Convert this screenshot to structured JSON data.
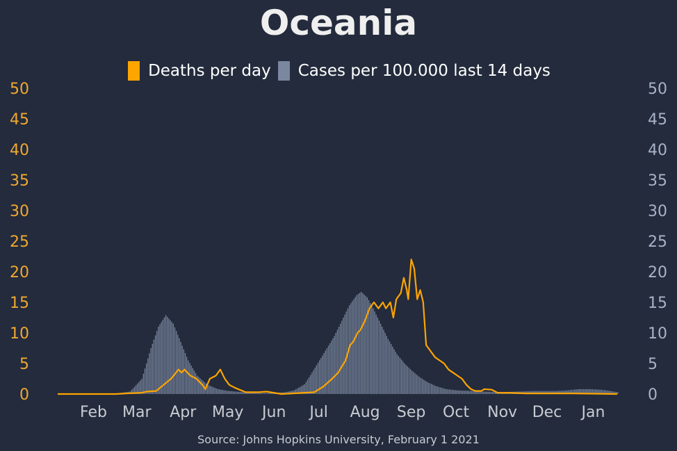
{
  "chart_data": {
    "type": "bar+line",
    "title": "Oceania",
    "source": "Source: Johns Hopkins University, February 1 2021",
    "colors": {
      "deaths": "#ffa500",
      "cases": "#7a879f",
      "left_axis": "#f0a830",
      "right_axis": "#a9b3c8",
      "month_labels": "#c9ccd2",
      "background": "#232b3c"
    },
    "legend": [
      {
        "key": "deaths",
        "label": "Deaths per day"
      },
      {
        "key": "cases",
        "label": "Cases per 100.000 last 14 days"
      }
    ],
    "y_left": {
      "ylim": [
        0,
        50
      ],
      "ticks": [
        "0",
        "5",
        "10",
        "15",
        "20",
        "25",
        "30",
        "35",
        "40",
        "45",
        "50"
      ]
    },
    "y_right": {
      "ylim": [
        0,
        50
      ],
      "ticks": [
        "0",
        "5",
        "10",
        "15",
        "20",
        "25",
        "30",
        "35",
        "40",
        "45",
        "50"
      ]
    },
    "months": [
      "Feb",
      "Mar",
      "Apr",
      "May",
      "Jun",
      "Jul",
      "Aug",
      "Sep",
      "Oct",
      "Nov",
      "Dec",
      "Jan"
    ],
    "x_start": "2020-01-22",
    "cases_points": [
      [
        "2020-01-22",
        0
      ],
      [
        "2020-03-01",
        0.1
      ],
      [
        "2020-03-10",
        0.4
      ],
      [
        "2020-03-18",
        2.5
      ],
      [
        "2020-03-24",
        7.5
      ],
      [
        "2020-03-29",
        11
      ],
      [
        "2020-04-03",
        12.9
      ],
      [
        "2020-04-08",
        11.5
      ],
      [
        "2020-04-13",
        8.5
      ],
      [
        "2020-04-18",
        5.5
      ],
      [
        "2020-04-24",
        3
      ],
      [
        "2020-05-01",
        1.5
      ],
      [
        "2020-05-08",
        0.8
      ],
      [
        "2020-05-15",
        0.5
      ],
      [
        "2020-05-25",
        0.3
      ],
      [
        "2020-06-05",
        0.15
      ],
      [
        "2020-06-15",
        0.2
      ],
      [
        "2020-06-22",
        0.3
      ],
      [
        "2020-06-28",
        0.6
      ],
      [
        "2020-07-05",
        1.6
      ],
      [
        "2020-07-10",
        3.5
      ],
      [
        "2020-07-15",
        5.5
      ],
      [
        "2020-07-20",
        7.5
      ],
      [
        "2020-07-25",
        9.5
      ],
      [
        "2020-07-30",
        12
      ],
      [
        "2020-08-04",
        14.5
      ],
      [
        "2020-08-09",
        16.2
      ],
      [
        "2020-08-12",
        16.7
      ],
      [
        "2020-08-16",
        15.8
      ],
      [
        "2020-08-20",
        14
      ],
      [
        "2020-08-25",
        11.5
      ],
      [
        "2020-08-30",
        9
      ],
      [
        "2020-09-05",
        6.5
      ],
      [
        "2020-09-10",
        5
      ],
      [
        "2020-09-15",
        3.8
      ],
      [
        "2020-09-20",
        2.8
      ],
      [
        "2020-09-25",
        2
      ],
      [
        "2020-10-01",
        1.3
      ],
      [
        "2020-10-08",
        0.8
      ],
      [
        "2020-10-15",
        0.6
      ],
      [
        "2020-10-25",
        0.5
      ],
      [
        "2020-11-01",
        0.4
      ],
      [
        "2020-11-15",
        0.3
      ],
      [
        "2020-11-25",
        0.4
      ],
      [
        "2020-12-05",
        0.5
      ],
      [
        "2020-12-20",
        0.5
      ],
      [
        "2020-12-28",
        0.6
      ],
      [
        "2021-01-05",
        0.8
      ],
      [
        "2021-01-12",
        0.8
      ],
      [
        "2021-01-20",
        0.7
      ],
      [
        "2021-01-26",
        0.5
      ],
      [
        "2021-01-31",
        0.3
      ]
    ],
    "deaths_points": [
      [
        "2020-01-22",
        0
      ],
      [
        "2020-03-01",
        0
      ],
      [
        "2020-03-08",
        0.1
      ],
      [
        "2020-03-18",
        0.2
      ],
      [
        "2020-03-22",
        0.4
      ],
      [
        "2020-03-28",
        0.5
      ],
      [
        "2020-04-02",
        1.5
      ],
      [
        "2020-04-07",
        2.5
      ],
      [
        "2020-04-12",
        4.0
      ],
      [
        "2020-04-14",
        3.5
      ],
      [
        "2020-04-16",
        4.0
      ],
      [
        "2020-04-20",
        3.0
      ],
      [
        "2020-04-24",
        2.5
      ],
      [
        "2020-04-28",
        1.5
      ],
      [
        "2020-04-30",
        0.8
      ],
      [
        "2020-05-03",
        2.5
      ],
      [
        "2020-05-07",
        3.0
      ],
      [
        "2020-05-10",
        4.0
      ],
      [
        "2020-05-13",
        2.5
      ],
      [
        "2020-05-16",
        1.5
      ],
      [
        "2020-05-20",
        1.0
      ],
      [
        "2020-05-27",
        0.3
      ],
      [
        "2020-06-05",
        0.3
      ],
      [
        "2020-06-10",
        0.4
      ],
      [
        "2020-06-15",
        0.2
      ],
      [
        "2020-06-20",
        0
      ],
      [
        "2020-07-05",
        0.2
      ],
      [
        "2020-07-12",
        0.3
      ],
      [
        "2020-07-18",
        1.2
      ],
      [
        "2020-07-24",
        2.5
      ],
      [
        "2020-07-28",
        3.5
      ],
      [
        "2020-08-02",
        5.5
      ],
      [
        "2020-08-05",
        8
      ],
      [
        "2020-08-07",
        8.5
      ],
      [
        "2020-08-10",
        10
      ],
      [
        "2020-08-12",
        10.5
      ],
      [
        "2020-08-15",
        12
      ],
      [
        "2020-08-18",
        14
      ],
      [
        "2020-08-21",
        15
      ],
      [
        "2020-08-24",
        14
      ],
      [
        "2020-08-27",
        15
      ],
      [
        "2020-08-29",
        14
      ],
      [
        "2020-09-01",
        15
      ],
      [
        "2020-09-03",
        12.5
      ],
      [
        "2020-09-05",
        15.5
      ],
      [
        "2020-09-08",
        16.5
      ],
      [
        "2020-09-10",
        19
      ],
      [
        "2020-09-12",
        17
      ],
      [
        "2020-09-13",
        15.5
      ],
      [
        "2020-09-15",
        22
      ],
      [
        "2020-09-17",
        20.5
      ],
      [
        "2020-09-19",
        15.5
      ],
      [
        "2020-09-21",
        17
      ],
      [
        "2020-09-23",
        15
      ],
      [
        "2020-09-25",
        8
      ],
      [
        "2020-09-28",
        7
      ],
      [
        "2020-10-01",
        6
      ],
      [
        "2020-10-04",
        5.5
      ],
      [
        "2020-10-07",
        5
      ],
      [
        "2020-10-10",
        4
      ],
      [
        "2020-10-13",
        3.5
      ],
      [
        "2020-10-16",
        3.0
      ],
      [
        "2020-10-19",
        2.5
      ],
      [
        "2020-10-22",
        1.5
      ],
      [
        "2020-10-25",
        0.8
      ],
      [
        "2020-10-28",
        0.5
      ],
      [
        "2020-11-01",
        0.5
      ],
      [
        "2020-11-03",
        0.8
      ],
      [
        "2020-11-08",
        0.7
      ],
      [
        "2020-11-12",
        0.2
      ],
      [
        "2020-11-20",
        0.2
      ],
      [
        "2020-12-01",
        0.1
      ],
      [
        "2021-01-01",
        0.1
      ],
      [
        "2021-01-31",
        0
      ]
    ]
  }
}
